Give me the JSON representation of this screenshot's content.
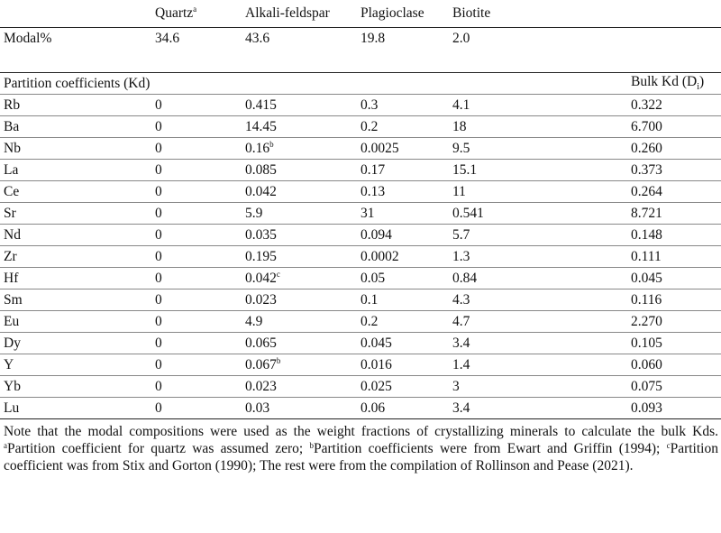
{
  "header": {
    "minerals": [
      "Quartz",
      "Alkali-feldspar",
      "Plagioclase",
      "Biotite"
    ],
    "quartz_sup": "a"
  },
  "modal": {
    "label": "Modal%",
    "values": [
      "34.6",
      "43.6",
      "19.8",
      "2.0"
    ]
  },
  "partition": {
    "label": "Partition coefficients (Kd)",
    "bulk_label": "Bulk Kd (D",
    "bulk_sub": "i",
    "bulk_close": ")"
  },
  "rows": [
    {
      "el": "Rb",
      "q": "0",
      "af": "0.415",
      "af_sup": "",
      "pl": "0.3",
      "bt": "4.1",
      "bulk": "0.322"
    },
    {
      "el": "Ba",
      "q": "0",
      "af": "14.45",
      "af_sup": "",
      "pl": "0.2",
      "bt": "18",
      "bulk": "6.700"
    },
    {
      "el": "Nb",
      "q": "0",
      "af": "0.16",
      "af_sup": "b",
      "pl": "0.0025",
      "bt": "9.5",
      "bulk": "0.260"
    },
    {
      "el": "La",
      "q": "0",
      "af": "0.085",
      "af_sup": "",
      "pl": "0.17",
      "bt": "15.1",
      "bulk": "0.373"
    },
    {
      "el": "Ce",
      "q": "0",
      "af": "0.042",
      "af_sup": "",
      "pl": "0.13",
      "bt": "11",
      "bulk": "0.264"
    },
    {
      "el": "Sr",
      "q": "0",
      "af": "5.9",
      "af_sup": "",
      "pl": "31",
      "bt": "0.541",
      "bulk": "8.721"
    },
    {
      "el": "Nd",
      "q": "0",
      "af": "0.035",
      "af_sup": "",
      "pl": "0.094",
      "bt": "5.7",
      "bulk": "0.148"
    },
    {
      "el": "Zr",
      "q": "0",
      "af": "0.195",
      "af_sup": "",
      "pl": "0.0002",
      "bt": "1.3",
      "bulk": "0.111"
    },
    {
      "el": "Hf",
      "q": "0",
      "af": "0.042",
      "af_sup": "c",
      "pl": "0.05",
      "bt": "0.84",
      "bulk": "0.045"
    },
    {
      "el": "Sm",
      "q": "0",
      "af": "0.023",
      "af_sup": "",
      "pl": "0.1",
      "bt": "4.3",
      "bulk": "0.116"
    },
    {
      "el": "Eu",
      "q": "0",
      "af": "4.9",
      "af_sup": "",
      "pl": "0.2",
      "bt": "4.7",
      "bulk": "2.270"
    },
    {
      "el": "Dy",
      "q": "0",
      "af": "0.065",
      "af_sup": "",
      "pl": "0.045",
      "bt": "3.4",
      "bulk": "0.105"
    },
    {
      "el": "Y",
      "q": "0",
      "af": "0.067",
      "af_sup": "b",
      "pl": "0.016",
      "bt": "1.4",
      "bulk": "0.060"
    },
    {
      "el": "Yb",
      "q": "0",
      "af": "0.023",
      "af_sup": "",
      "pl": "0.025",
      "bt": "3",
      "bulk": "0.075"
    },
    {
      "el": "Lu",
      "q": "0",
      "af": "0.03",
      "af_sup": "",
      "pl": "0.06",
      "bt": "3.4",
      "bulk": "0.093"
    }
  ],
  "note": {
    "part1": "Note that the modal compositions were used as the weight fractions of crystallizing minerals to calculate the bulk Kds. ",
    "sup_a": "a",
    "part2": "Partition coefficient for quartz was assumed zero; ",
    "sup_b": "b",
    "part3": "Partition coefficients were from Ewart and Griffin (1994); ",
    "sup_c": "c",
    "part4": "Partition coefficient was from Stix and Gorton (1990); The rest were from the compilation of Rollinson and Pease (2021)."
  }
}
